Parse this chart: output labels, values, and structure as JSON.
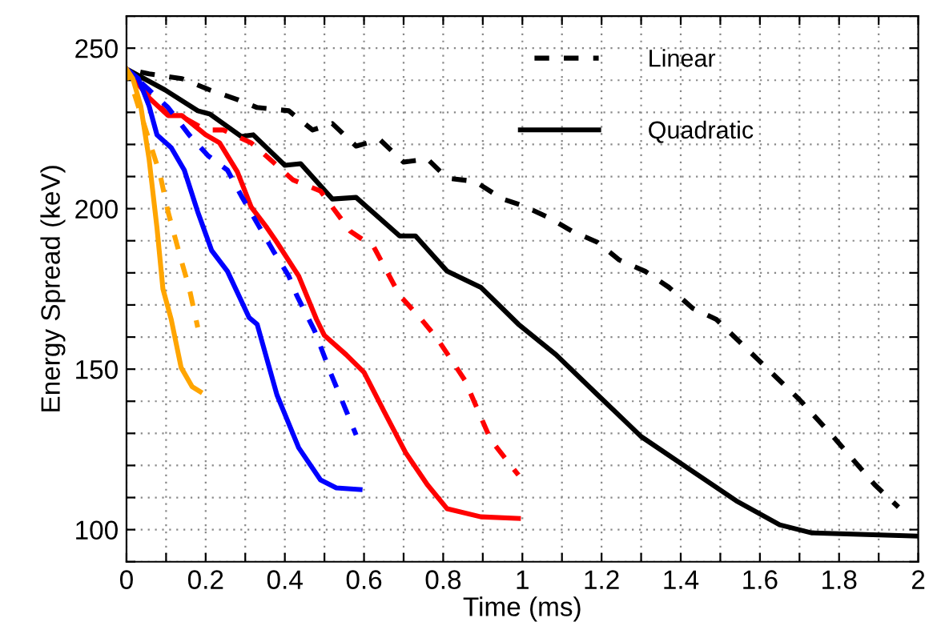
{
  "chart_data": {
    "type": "line",
    "xlabel": "Time (ms)",
    "ylabel": "Energy Spread (keV)",
    "xlim": [
      0,
      2
    ],
    "ylim": [
      90,
      260
    ],
    "xticks": [
      0,
      {
        "value": 0.1,
        "label": null
      },
      {
        "value": 0.2,
        "label": "0.2"
      },
      {
        "value": 0.3,
        "label": null
      },
      {
        "value": 0.4,
        "label": "0.4"
      },
      {
        "value": 0.5,
        "label": null
      },
      {
        "value": 0.6,
        "label": "0.6"
      },
      {
        "value": 0.7,
        "label": null
      },
      {
        "value": 0.8,
        "label": "0.8"
      },
      {
        "value": 0.9,
        "label": null
      },
      1,
      {
        "value": 1.1,
        "label": null
      },
      {
        "value": 1.2,
        "label": "1.2"
      },
      {
        "value": 1.3,
        "label": null
      },
      {
        "value": 1.4,
        "label": "1.4"
      },
      {
        "value": 1.5,
        "label": null
      },
      {
        "value": 1.6,
        "label": "1.6"
      },
      {
        "value": 1.7,
        "label": null
      },
      {
        "value": 1.8,
        "label": "1.8"
      },
      {
        "value": 1.9,
        "label": null
      },
      2
    ],
    "yticks": [
      {
        "value": 90,
        "label": null
      },
      100,
      {
        "value": 110,
        "label": null
      },
      {
        "value": 120,
        "label": null
      },
      {
        "value": 130,
        "label": null
      },
      {
        "value": 140,
        "label": null
      },
      150,
      {
        "value": 160,
        "label": null
      },
      {
        "value": 170,
        "label": null
      },
      {
        "value": 180,
        "label": null
      },
      {
        "value": 190,
        "label": null
      },
      200,
      {
        "value": 210,
        "label": null
      },
      {
        "value": 220,
        "label": null
      },
      {
        "value": 230,
        "label": null
      },
      {
        "value": 240,
        "label": null
      },
      250,
      {
        "value": 260,
        "label": null
      }
    ],
    "grid": true,
    "legend": "top right",
    "marker": "none",
    "series": [
      {
        "name": "Linear",
        "color": "#000000",
        "line_style": "dashed",
        "x": [
          0,
          0.057,
          0.14,
          0.21,
          0.28,
          0.33,
          0.41,
          0.47,
          0.52,
          0.58,
          0.64,
          0.7,
          0.76,
          0.81,
          0.88,
          0.95,
          1.0,
          1.07,
          1.125,
          1.19,
          1.245,
          1.31,
          1.37,
          1.43,
          1.49,
          1.595,
          1.7,
          1.785,
          1.89,
          1.95
        ],
        "values": [
          243.5,
          242,
          240.5,
          237,
          234,
          231.5,
          230.5,
          224.5,
          226.5,
          219.5,
          221.5,
          214.5,
          215.5,
          209.5,
          208.5,
          203,
          201,
          197,
          193,
          189.5,
          184,
          180.5,
          175.5,
          169,
          165.5,
          153,
          140.5,
          129,
          114,
          107
        ]
      },
      {
        "name": "Quadratic",
        "color": "#000000",
        "line_style": "solid",
        "x": [
          0,
          0.097,
          0.18,
          0.21,
          0.29,
          0.32,
          0.4,
          0.44,
          0.52,
          0.58,
          0.69,
          0.73,
          0.81,
          0.895,
          0.99,
          1.085,
          1.19,
          1.3,
          1.42,
          1.54,
          1.65,
          1.73,
          2.0
        ],
        "values": [
          243.5,
          237,
          230.5,
          229.5,
          222.5,
          223,
          213.5,
          214,
          203,
          203.5,
          191.5,
          191.5,
          180.5,
          175.5,
          164,
          154.5,
          142,
          129,
          119,
          109,
          101.5,
          99,
          98
        ]
      },
      {
        "color": "#ff0000",
        "line_style": "dashed",
        "x": [
          0,
          0.05,
          0.1,
          0.15,
          0.2,
          0.245,
          0.315,
          0.375,
          0.42,
          0.49,
          0.565,
          0.625,
          0.69,
          0.745,
          0.785,
          0.855,
          0.92,
          0.99
        ],
        "values": [
          243.5,
          236,
          230,
          228,
          224.5,
          224.5,
          220.5,
          214,
          209,
          205.5,
          193,
          188,
          173,
          165.5,
          159.5,
          146.5,
          128,
          117
        ]
      },
      {
        "color": "#ff0000",
        "line_style": "solid",
        "x": [
          0,
          0.057,
          0.105,
          0.14,
          0.2,
          0.235,
          0.28,
          0.315,
          0.355,
          0.38,
          0.435,
          0.48,
          0.5,
          0.555,
          0.6,
          0.65,
          0.705,
          0.76,
          0.81,
          0.895,
          0.99
        ],
        "values": [
          243.5,
          234.5,
          229,
          229,
          223,
          220.5,
          211.5,
          200.5,
          194,
          189.5,
          179,
          165.5,
          160.5,
          154.5,
          149,
          137,
          124,
          114,
          106.5,
          104,
          103.5
        ]
      },
      {
        "color": "#0000ff",
        "line_style": "dashed",
        "x": [
          0,
          0.057,
          0.105,
          0.158,
          0.206,
          0.255,
          0.29,
          0.33,
          0.37,
          0.41,
          0.43,
          0.475,
          0.515,
          0.555,
          0.58
        ],
        "values": [
          243.5,
          237,
          231.5,
          223,
          216.5,
          212,
          204,
          195.5,
          187,
          179,
          173,
          162,
          149,
          137,
          129.5
        ]
      },
      {
        "color": "#0000ff",
        "line_style": "solid",
        "x": [
          0,
          0.03,
          0.057,
          0.077,
          0.113,
          0.146,
          0.18,
          0.215,
          0.255,
          0.31,
          0.33,
          0.38,
          0.435,
          0.49,
          0.53,
          0.59
        ],
        "values": [
          243.5,
          240.5,
          232,
          223,
          219,
          212,
          199,
          187,
          180.5,
          166,
          164,
          142,
          125.5,
          115.5,
          113,
          112.5
        ]
      },
      {
        "color": "#ffa500",
        "line_style": "dashed",
        "x": [
          0,
          0.036,
          0.085,
          0.105,
          0.138,
          0.158,
          0.18
        ],
        "values": [
          243.5,
          229.5,
          210.5,
          199,
          184,
          175.5,
          163
        ]
      },
      {
        "color": "#ffa500",
        "line_style": "solid",
        "x": [
          0,
          0.016,
          0.036,
          0.057,
          0.077,
          0.092,
          0.113,
          0.138,
          0.166,
          0.186
        ],
        "values": [
          243.5,
          240.5,
          232,
          215.5,
          194,
          175,
          165.5,
          150.5,
          144.5,
          143
        ]
      }
    ]
  }
}
